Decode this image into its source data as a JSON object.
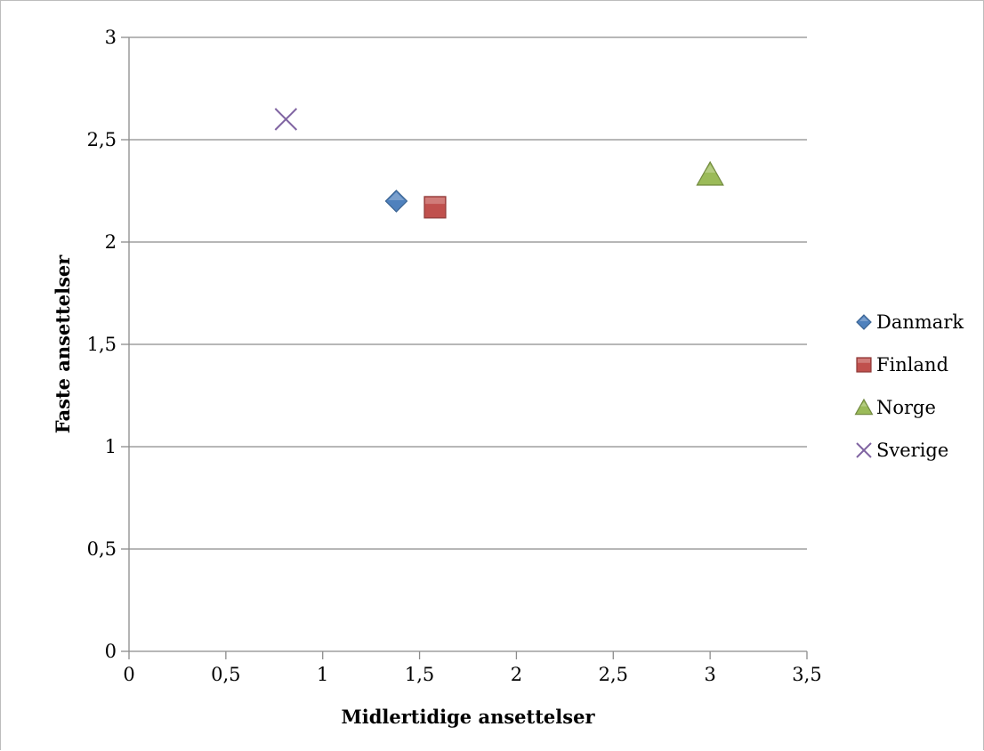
{
  "chart_data": {
    "type": "scatter",
    "title": "",
    "xlabel": "Midlertidige ansettelser",
    "ylabel": "Faste ansettelser",
    "xlim": [
      0,
      3.5
    ],
    "ylim": [
      0,
      3
    ],
    "x_ticks": [
      "0",
      "0,5",
      "1",
      "1,5",
      "2",
      "2,5",
      "3",
      "3,5"
    ],
    "y_ticks": [
      "0",
      "0,5",
      "1",
      "1,5",
      "2",
      "2,5",
      "3"
    ],
    "x_tick_values": [
      0,
      0.5,
      1,
      1.5,
      2,
      2.5,
      3,
      3.5
    ],
    "y_tick_values": [
      0,
      0.5,
      1,
      1.5,
      2,
      2.5,
      3
    ],
    "grid": "horizontal",
    "legend_position": "right",
    "series": [
      {
        "name": "Danmark",
        "x": [
          1.38
        ],
        "y": [
          2.2
        ],
        "marker": "diamond",
        "color": "#4f81bd"
      },
      {
        "name": "Finland",
        "x": [
          1.58
        ],
        "y": [
          2.17
        ],
        "marker": "square",
        "color": "#c0504d"
      },
      {
        "name": "Norge",
        "x": [
          3.0
        ],
        "y": [
          2.33
        ],
        "marker": "triangle",
        "color": "#9bbb59"
      },
      {
        "name": "Sverige",
        "x": [
          0.81
        ],
        "y": [
          2.6
        ],
        "marker": "x",
        "color": "#8064a2"
      }
    ]
  }
}
